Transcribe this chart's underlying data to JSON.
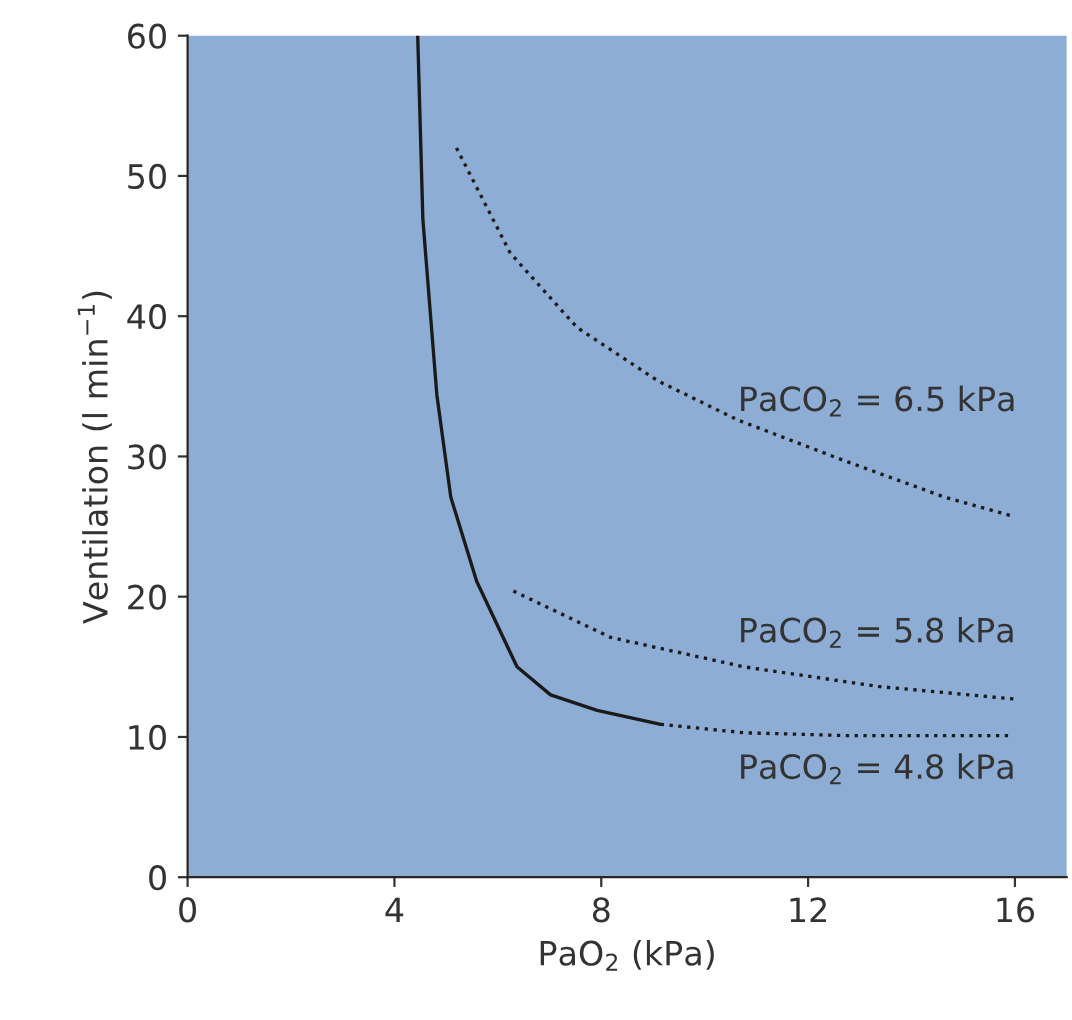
{
  "chart_data": {
    "type": "line",
    "xlabel": "PaO$_{2}$ (kPa)",
    "ylabel": "Ventilation (l min$^{−1}$)",
    "xlim": [
      0,
      17
    ],
    "ylim": [
      0,
      60
    ],
    "xticks": [
      0,
      4,
      8,
      12,
      16
    ],
    "yticks": [
      0,
      10,
      20,
      30,
      40,
      50,
      60
    ],
    "grid": false,
    "legend": false,
    "marker": "none",
    "series": [
      {
        "color": "#1a1a1a",
        "line_style": "solid",
        "x": [
          4.45,
          4.55,
          4.82,
          5.09,
          5.59,
          6.37,
          7.02,
          7.92,
          9.15
        ],
        "values": [
          60,
          46.9,
          34.4,
          27.1,
          21.1,
          15.0,
          13.0,
          11.9,
          10.9
        ]
      },
      {
        "color": "#1a1a1a",
        "line_style": "dotted",
        "x": [
          9.15,
          10.76,
          12.7,
          15.95
        ],
        "values": [
          10.9,
          10.3,
          10.1,
          10.1
        ]
      },
      {
        "color": "#1a1a1a",
        "line_style": "dotted",
        "x": [
          6.3,
          8.18,
          10.76,
          13.36,
          16.0
        ],
        "values": [
          20.4,
          17.1,
          15.0,
          13.6,
          12.7
        ]
      },
      {
        "color": "#1a1a1a",
        "line_style": "dotted",
        "x": [
          5.2,
          6.24,
          7.53,
          9.09,
          10.64,
          12.7,
          14.64,
          16.0
        ],
        "values": [
          52.0,
          44.5,
          39.2,
          35.4,
          32.6,
          29.7,
          27.1,
          25.7
        ]
      }
    ],
    "annotations": [
      "PaCO$_{2}$ = 6.5 kPa",
      "PaCO$_{2}$ = 5.8 kPa",
      "PaCO$_{2}$ = 4.8 kPa"
    ]
  }
}
